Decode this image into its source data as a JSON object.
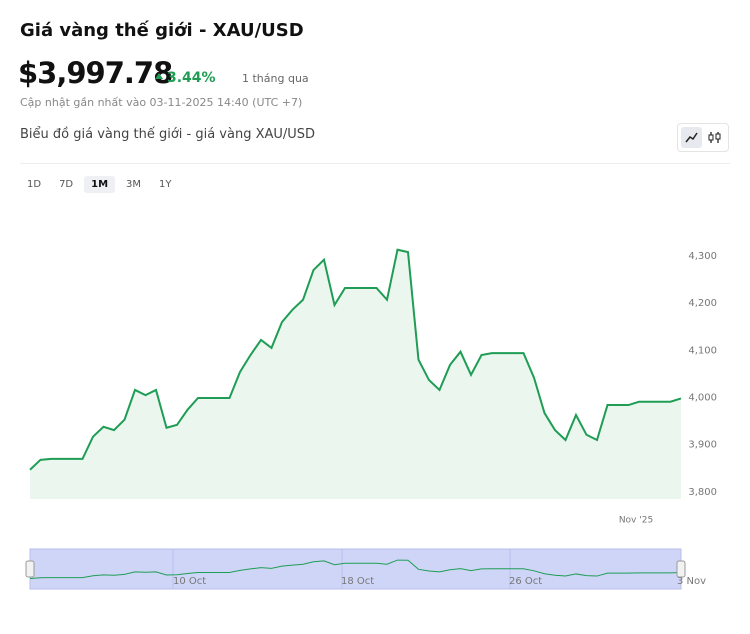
{
  "header": {
    "title": "Giá vàng thế giới - XAU/USD",
    "price": "$3,997.78",
    "change": "3.44%",
    "period": "1 tháng qua",
    "updated": "Cập nhật gần nhất vào 03-11-2025 14:40 (UTC +7)"
  },
  "ranges": [
    "1D",
    "7D",
    "1M",
    "3M",
    "1Y"
  ],
  "chart_data": {
    "type": "area",
    "title": "Biểu đồ giá vàng thế giới - giá vàng XAU/USD",
    "categories": [
      null,
      null,
      null,
      null,
      null,
      null,
      null,
      null,
      null,
      null,
      null,
      null,
      null,
      null,
      null,
      null,
      null,
      null,
      null,
      null,
      null,
      null,
      null,
      null,
      null,
      null,
      null,
      null,
      null,
      null,
      null,
      null,
      null,
      null,
      null,
      null,
      null,
      null,
      null,
      null,
      null,
      null,
      null,
      null,
      null,
      null,
      null,
      null,
      null,
      null,
      null,
      null,
      null,
      null,
      null,
      null,
      null,
      null,
      "Nov '25",
      null,
      null,
      null,
      null
    ],
    "values": [
      3847,
      3868,
      3870,
      3870,
      3870,
      3870,
      3917,
      3938,
      3931,
      3953,
      4016,
      4005,
      4016,
      3936,
      3942,
      3974,
      3999,
      3999,
      3999,
      3999,
      4054,
      4090,
      4122,
      4105,
      4160,
      4186,
      4207,
      4270,
      4292,
      4196,
      4232,
      4232,
      4232,
      4232,
      4207,
      4313,
      4308,
      4080,
      4037,
      4016,
      4069,
      4097,
      4048,
      4090,
      4094,
      4094,
      4094,
      4094,
      4042,
      3967,
      3931,
      3910,
      3963,
      3921,
      3910,
      3984,
      3984,
      3984,
      3991,
      3991,
      3991,
      3991,
      3998
    ],
    "color": "#1f9d55",
    "fill": "#eaf6ee",
    "ylim": [
      3785,
      4340
    ],
    "yticks": [
      {
        "value": 3800,
        "label": "3,800"
      },
      {
        "value": 3900,
        "label": "3,900"
      },
      {
        "value": 4000,
        "label": "4,000"
      },
      {
        "value": 4100,
        "label": "4,100"
      },
      {
        "value": 4200,
        "label": "4,200"
      },
      {
        "value": 4300,
        "label": "4,300"
      }
    ],
    "navigator_xticks": [
      {
        "value": 14,
        "label": "10 Oct"
      },
      {
        "value": 30,
        "label": "18 Oct"
      },
      {
        "value": 46,
        "label": "26 Oct"
      },
      {
        "value": 62,
        "label": "3 Nov"
      }
    ]
  }
}
